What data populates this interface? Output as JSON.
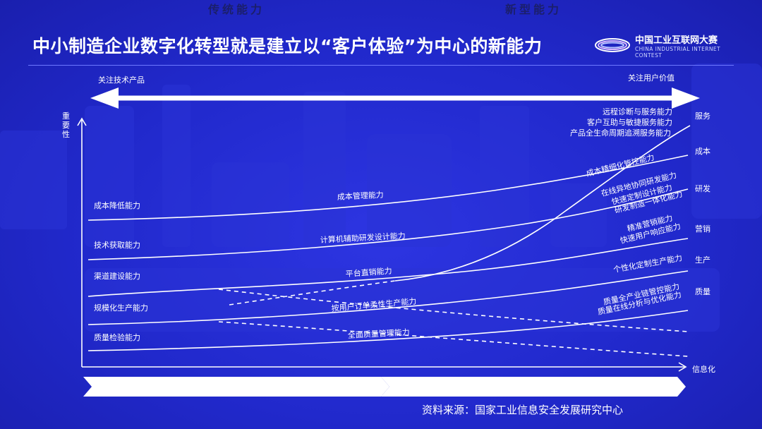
{
  "header": {
    "title": "中小制造企业数字化转型就是建立以“客户体验”为中心的新能力",
    "logo_cn": "中国工业互联网大赛",
    "logo_en": "CHINA INDUSTRIAL INTERNET CONTEST"
  },
  "arrow": {
    "left_label": "关注技术产品",
    "right_label": "关注用户价值"
  },
  "axes": {
    "y_label": "重要性",
    "x_label": "信息化"
  },
  "left_labels": [
    "成本降低能力",
    "技术获取能力",
    "渠道建设能力",
    "规模化生产能力",
    "质量检验能力"
  ],
  "right_categories": [
    "服务",
    "成本",
    "研发",
    "营销",
    "生产",
    "质量"
  ],
  "mid_labels": [
    "成本管理能力",
    "计算机辅助研发设计能力",
    "平台直销能力",
    "按用户订单柔性生产能力",
    "全面质量管理能力"
  ],
  "right_labels": {
    "service": [
      "远程诊断与服务能力",
      "客户互助与敏捷服务能力",
      "产品全生命周期追溯服务能力"
    ],
    "cost": [
      "成本精细化管控能力"
    ],
    "rd": [
      "在线异地协同研发能力",
      "快速定制设计能力",
      "研发制造一体化能力"
    ],
    "marketing": [
      "精准营销能力",
      "快速用户响应能力"
    ],
    "production": [
      "个性化定制生产能力"
    ],
    "quality": [
      "质量全产业链管控能力",
      "质量在线分析与优化能力"
    ]
  },
  "bands": {
    "traditional": "传统能力",
    "new": "新型能力"
  },
  "source": "资料来源：国家工业信息安全发展研究中心",
  "colors": {
    "background": "#2129cc",
    "line": "#ffffff",
    "band": "#ffffff",
    "band_text": "#1b1f6a"
  }
}
